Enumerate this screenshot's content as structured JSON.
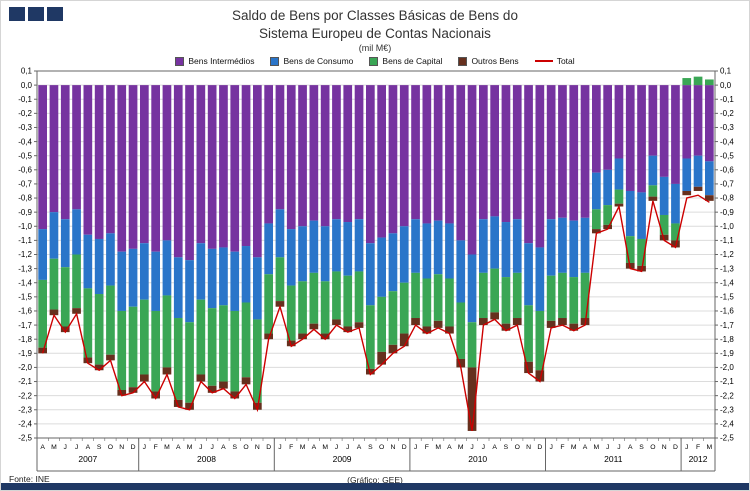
{
  "colors": {
    "navy": "#1F3864",
    "grid": "#DCDCDC",
    "axis": "#666666",
    "intermedios": "#7633A0",
    "consumo": "#2A75C9",
    "capital": "#3AA655",
    "outros": "#66301E",
    "total": "#CC0000"
  },
  "logo": {
    "name": "three-squares-logo",
    "square_count": 3
  },
  "title": {
    "line1": "Saldo de Bens por Classes Básicas de Bens do",
    "line2": "Sistema Europeu de Contas Nacionais",
    "subtitle": "(mil M€)"
  },
  "footer": {
    "source": "Fonte: INE",
    "credit": "(Gráfico: GEE)"
  },
  "chart_data": {
    "type": "bar",
    "stacked": true,
    "title": "Saldo de Bens por Classes Básicas de Bens do Sistema Europeu de Contas Nacionais (mil M€)",
    "ylabel": "mil M€",
    "ylim": [
      -2.5,
      0.1
    ],
    "y_tick_step": 0.1,
    "grid": true,
    "legend_position": "top",
    "y_tick_labels": [
      "0,1",
      "0,0",
      "-0,1",
      "-0,2",
      "-0,3",
      "-0,4",
      "-0,5",
      "-0,6",
      "-0,7",
      "-0,8",
      "-0,9",
      "-1,0",
      "-1,1",
      "-1,2",
      "-1,3",
      "-1,4",
      "-1,5",
      "-1,6",
      "-1,7",
      "-1,8",
      "-1,9",
      "-2,0",
      "-2,1",
      "-2,2",
      "-2,3",
      "-2,4",
      "-2,5"
    ],
    "x_groups": [
      {
        "year": "2007",
        "months": [
          "A",
          "M",
          "J",
          "J",
          "A",
          "S",
          "O",
          "N",
          "D"
        ]
      },
      {
        "year": "2008",
        "months": [
          "J",
          "F",
          "M",
          "A",
          "M",
          "J",
          "J",
          "A",
          "S",
          "O",
          "N",
          "D"
        ]
      },
      {
        "year": "2009",
        "months": [
          "J",
          "F",
          "M",
          "A",
          "M",
          "J",
          "J",
          "A",
          "S",
          "O",
          "N",
          "D"
        ]
      },
      {
        "year": "2010",
        "months": [
          "J",
          "F",
          "M",
          "A",
          "M",
          "J",
          "J",
          "A",
          "S",
          "O",
          "N",
          "D"
        ]
      },
      {
        "year": "2011",
        "months": [
          "J",
          "F",
          "M",
          "A",
          "M",
          "J",
          "J",
          "A",
          "S",
          "O",
          "N",
          "D"
        ]
      },
      {
        "year": "2012",
        "months": [
          "J",
          "F",
          "M"
        ]
      }
    ],
    "series": [
      {
        "name": "Bens Intermédios",
        "color": "#7633A0",
        "values": [
          -1.02,
          -0.9,
          -0.95,
          -0.88,
          -1.06,
          -1.09,
          -1.05,
          -1.18,
          -1.16,
          -1.12,
          -1.18,
          -1.1,
          -1.22,
          -1.24,
          -1.12,
          -1.16,
          -1.15,
          -1.18,
          -1.14,
          -1.22,
          -0.98,
          -0.88,
          -1.02,
          -1.0,
          -0.96,
          -1.0,
          -0.95,
          -0.97,
          -0.95,
          -1.12,
          -1.08,
          -1.05,
          -1.0,
          -0.95,
          -0.98,
          -0.96,
          -0.98,
          -1.1,
          -1.2,
          -0.95,
          -0.93,
          -0.97,
          -0.95,
          -1.12,
          -1.15,
          -0.95,
          -0.94,
          -0.96,
          -0.94,
          -0.62,
          -0.6,
          -0.52,
          -0.75,
          -0.76,
          -0.5,
          -0.65,
          -0.7,
          -0.52,
          -0.5,
          -0.54
        ]
      },
      {
        "name": "Bens de Consumo",
        "color": "#2A75C9",
        "values": [
          -0.36,
          -0.33,
          -0.34,
          -0.32,
          -0.38,
          -0.39,
          -0.37,
          -0.42,
          -0.41,
          -0.4,
          -0.42,
          -0.39,
          -0.43,
          -0.44,
          -0.4,
          -0.42,
          -0.41,
          -0.42,
          -0.4,
          -0.44,
          -0.36,
          -0.34,
          -0.4,
          -0.39,
          -0.37,
          -0.39,
          -0.37,
          -0.38,
          -0.37,
          -0.44,
          -0.42,
          -0.41,
          -0.4,
          -0.38,
          -0.39,
          -0.38,
          -0.39,
          -0.44,
          -0.48,
          -0.38,
          -0.37,
          -0.39,
          -0.38,
          -0.44,
          -0.45,
          -0.4,
          -0.39,
          -0.4,
          -0.39,
          -0.26,
          -0.25,
          -0.22,
          -0.32,
          -0.33,
          -0.21,
          -0.27,
          -0.28,
          -0.23,
          -0.22,
          -0.24
        ]
      },
      {
        "name": "Bens de Capital",
        "color": "#3AA655",
        "values": [
          -0.48,
          -0.36,
          -0.42,
          -0.38,
          -0.49,
          -0.5,
          -0.49,
          -0.56,
          -0.57,
          -0.53,
          -0.57,
          -0.51,
          -0.58,
          -0.57,
          -0.53,
          -0.55,
          -0.54,
          -0.57,
          -0.53,
          -0.59,
          -0.42,
          -0.31,
          -0.39,
          -0.37,
          -0.36,
          -0.37,
          -0.34,
          -0.36,
          -0.36,
          -0.45,
          -0.39,
          -0.38,
          -0.36,
          -0.32,
          -0.34,
          -0.33,
          -0.34,
          -0.4,
          -0.32,
          -0.32,
          -0.31,
          -0.33,
          -0.32,
          -0.4,
          -0.42,
          -0.32,
          -0.32,
          -0.33,
          -0.32,
          -0.14,
          -0.14,
          -0.1,
          -0.19,
          -0.19,
          -0.08,
          -0.14,
          -0.12,
          0.05,
          0.06,
          0.04
        ]
      },
      {
        "name": "Outros Bens",
        "color": "#66301E",
        "values": [
          -0.04,
          -0.04,
          -0.04,
          -0.04,
          -0.04,
          -0.04,
          -0.04,
          -0.04,
          -0.04,
          -0.05,
          -0.05,
          -0.05,
          -0.05,
          -0.05,
          -0.05,
          -0.05,
          -0.05,
          -0.05,
          -0.05,
          -0.05,
          -0.04,
          -0.04,
          -0.04,
          -0.04,
          -0.04,
          -0.04,
          -0.04,
          -0.04,
          -0.04,
          -0.04,
          -0.09,
          -0.06,
          -0.09,
          -0.05,
          -0.05,
          -0.05,
          -0.05,
          -0.06,
          -0.45,
          -0.05,
          -0.05,
          -0.05,
          -0.05,
          -0.08,
          -0.08,
          -0.05,
          -0.05,
          -0.05,
          -0.05,
          -0.03,
          -0.03,
          -0.02,
          -0.04,
          -0.04,
          -0.03,
          -0.04,
          -0.05,
          -0.03,
          -0.03,
          -0.04
        ]
      }
    ],
    "line_series": {
      "name": "Total",
      "color": "#CC0000",
      "values": [
        -1.9,
        -1.63,
        -1.75,
        -1.62,
        -1.97,
        -2.02,
        -1.95,
        -2.2,
        -2.18,
        -2.1,
        -2.22,
        -2.05,
        -2.28,
        -2.3,
        -2.1,
        -2.18,
        -2.15,
        -2.22,
        -2.12,
        -2.3,
        -1.8,
        -1.57,
        -1.85,
        -1.8,
        -1.73,
        -1.8,
        -1.7,
        -1.75,
        -1.72,
        -2.05,
        -1.98,
        -1.9,
        -1.85,
        -1.7,
        -1.76,
        -1.72,
        -1.76,
        -2.0,
        -2.45,
        -1.7,
        -1.66,
        -1.74,
        -1.7,
        -2.04,
        -2.1,
        -1.72,
        -1.7,
        -1.74,
        -1.7,
        -1.05,
        -1.02,
        -0.86,
        -1.3,
        -1.32,
        -0.82,
        -1.1,
        -1.15,
        -0.8,
        -0.78,
        -0.83
      ]
    }
  }
}
